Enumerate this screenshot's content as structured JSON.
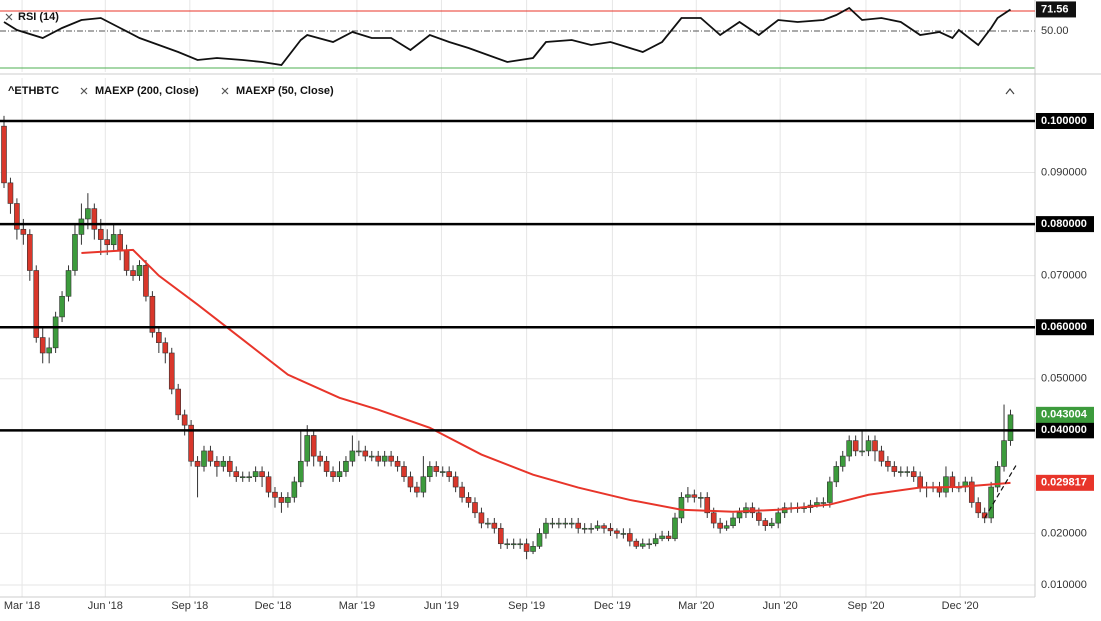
{
  "chart_data": {
    "type": "candlestick",
    "title": "^ETHBTC",
    "legend": [
      "MAEXP (200, Close)",
      "MAEXP (50, Close)"
    ],
    "up_color": "#3c9b3c",
    "down_color": "#d9372b",
    "xlim": [
      -0.62,
      159.8
    ],
    "ylim": [
      0.00767,
      0.10834
    ],
    "grid": true,
    "xticks": [
      {
        "value": 2.8,
        "label": "Mar '18"
      },
      {
        "value": 15.7,
        "label": "Jun '18"
      },
      {
        "value": 28.8,
        "label": "Sep '18"
      },
      {
        "value": 41.7,
        "label": "Dec '18"
      },
      {
        "value": 54.7,
        "label": "Mar '19"
      },
      {
        "value": 67.8,
        "label": "Jun '19"
      },
      {
        "value": 81,
        "label": "Sep '19"
      },
      {
        "value": 94.3,
        "label": "Dec '19"
      },
      {
        "value": 107.3,
        "label": "Mar '20"
      },
      {
        "value": 120.3,
        "label": "Jun '20"
      },
      {
        "value": 133.6,
        "label": "Sep '20"
      },
      {
        "value": 148.2,
        "label": "Dec '20"
      }
    ],
    "yticks": [
      {
        "value": 0.01,
        "label": "0.010000"
      },
      {
        "value": 0.02,
        "label": "0.020000"
      },
      {
        "value": 0.05,
        "label": "0.050000"
      },
      {
        "value": 0.07,
        "label": "0.070000"
      },
      {
        "value": 0.09,
        "label": "0.090000"
      }
    ],
    "levels": [
      {
        "value": 0.1,
        "label": "0.100000"
      },
      {
        "value": 0.08,
        "label": "0.080000"
      },
      {
        "value": 0.06,
        "label": "0.060000"
      },
      {
        "value": 0.04,
        "label": "0.040000"
      }
    ],
    "open": [
      0.099,
      0.088,
      0.084,
      0.079,
      0.078,
      0.071,
      0.058,
      0.055,
      0.056,
      0.062,
      0.066,
      0.071,
      0.078,
      0.081,
      0.083,
      0.079,
      0.077,
      0.076,
      0.078,
      0.075,
      0.071,
      0.07,
      0.072,
      0.066,
      0.059,
      0.057,
      0.055,
      0.048,
      0.043,
      0.041,
      0.034,
      0.033,
      0.036,
      0.034,
      0.033,
      0.034,
      0.032,
      0.031,
      0.031,
      0.031,
      0.032,
      0.031,
      0.028,
      0.027,
      0.026,
      0.027,
      0.03,
      0.034,
      0.039,
      0.035,
      0.034,
      0.032,
      0.031,
      0.032,
      0.034,
      0.036,
      0.036,
      0.035,
      0.035,
      0.034,
      0.035,
      0.034,
      0.033,
      0.031,
      0.029,
      0.028,
      0.031,
      0.033,
      0.032,
      0.032,
      0.031,
      0.029,
      0.027,
      0.026,
      0.024,
      0.022,
      0.022,
      0.021,
      0.018,
      0.018,
      0.018,
      0.018,
      0.0165,
      0.0175,
      0.02,
      0.022,
      0.022,
      0.022,
      0.022,
      0.022,
      0.021,
      0.021,
      0.021,
      0.0215,
      0.021,
      0.0205,
      0.02,
      0.02,
      0.0185,
      0.0175,
      0.018,
      0.018,
      0.019,
      0.0195,
      0.019,
      0.023,
      0.027,
      0.0275,
      0.027,
      0.027,
      0.024,
      0.022,
      0.021,
      0.0215,
      0.023,
      0.024,
      0.025,
      0.024,
      0.0225,
      0.0215,
      0.022,
      0.024,
      0.025,
      0.025,
      0.025,
      0.025,
      0.0255,
      0.026,
      0.026,
      0.03,
      0.033,
      0.035,
      0.038,
      0.036,
      0.036,
      0.038,
      0.036,
      0.034,
      0.033,
      0.032,
      0.032,
      0.032,
      0.031,
      0.029,
      0.029,
      0.029,
      0.028,
      0.031,
      0.029,
      0.029,
      0.03,
      0.026,
      0.024,
      0.023,
      0.029,
      0.033,
      0.038
    ],
    "high": [
      0.101,
      0.089,
      0.085,
      0.081,
      0.079,
      0.072,
      0.06,
      0.058,
      0.063,
      0.067,
      0.072,
      0.08,
      0.084,
      0.086,
      0.084,
      0.081,
      0.079,
      0.08,
      0.079,
      0.076,
      0.072,
      0.073,
      0.073,
      0.067,
      0.06,
      0.058,
      0.056,
      0.049,
      0.044,
      0.042,
      0.035,
      0.037,
      0.037,
      0.035,
      0.035,
      0.035,
      0.033,
      0.032,
      0.032,
      0.033,
      0.033,
      0.032,
      0.029,
      0.028,
      0.028,
      0.031,
      0.04,
      0.041,
      0.04,
      0.036,
      0.035,
      0.033,
      0.034,
      0.035,
      0.039,
      0.038,
      0.037,
      0.036,
      0.036,
      0.036,
      0.036,
      0.035,
      0.034,
      0.032,
      0.03,
      0.035,
      0.034,
      0.034,
      0.033,
      0.033,
      0.032,
      0.03,
      0.028,
      0.027,
      0.025,
      0.023,
      0.023,
      0.022,
      0.019,
      0.019,
      0.019,
      0.019,
      0.0185,
      0.021,
      0.023,
      0.023,
      0.023,
      0.023,
      0.023,
      0.023,
      0.022,
      0.022,
      0.0225,
      0.022,
      0.022,
      0.021,
      0.021,
      0.021,
      0.019,
      0.019,
      0.019,
      0.02,
      0.0205,
      0.0205,
      0.024,
      0.028,
      0.029,
      0.0285,
      0.028,
      0.028,
      0.025,
      0.023,
      0.0225,
      0.024,
      0.025,
      0.026,
      0.026,
      0.025,
      0.023,
      0.023,
      0.025,
      0.026,
      0.026,
      0.026,
      0.026,
      0.0265,
      0.027,
      0.027,
      0.031,
      0.034,
      0.036,
      0.039,
      0.039,
      0.04,
      0.039,
      0.039,
      0.037,
      0.035,
      0.034,
      0.033,
      0.033,
      0.033,
      0.032,
      0.03,
      0.03,
      0.03,
      0.033,
      0.032,
      0.03,
      0.031,
      0.031,
      0.027,
      0.025,
      0.03,
      0.034,
      0.045,
      0.044
    ],
    "low": [
      0.087,
      0.082,
      0.077,
      0.076,
      0.069,
      0.057,
      0.053,
      0.053,
      0.055,
      0.061,
      0.065,
      0.07,
      0.076,
      0.079,
      0.077,
      0.074,
      0.074,
      0.075,
      0.073,
      0.07,
      0.069,
      0.069,
      0.065,
      0.058,
      0.055,
      0.053,
      0.047,
      0.042,
      0.039,
      0.033,
      0.027,
      0.032,
      0.033,
      0.031,
      0.032,
      0.031,
      0.03,
      0.03,
      0.03,
      0.03,
      0.029,
      0.027,
      0.025,
      0.024,
      0.025,
      0.026,
      0.029,
      0.033,
      0.033,
      0.033,
      0.031,
      0.03,
      0.03,
      0.031,
      0.033,
      0.035,
      0.034,
      0.034,
      0.033,
      0.033,
      0.033,
      0.032,
      0.03,
      0.028,
      0.027,
      0.027,
      0.03,
      0.031,
      0.031,
      0.03,
      0.028,
      0.026,
      0.025,
      0.023,
      0.021,
      0.021,
      0.02,
      0.017,
      0.017,
      0.017,
      0.017,
      0.015,
      0.016,
      0.017,
      0.019,
      0.021,
      0.021,
      0.021,
      0.021,
      0.02,
      0.02,
      0.02,
      0.0205,
      0.02,
      0.0195,
      0.019,
      0.019,
      0.0175,
      0.017,
      0.017,
      0.017,
      0.0175,
      0.0185,
      0.0185,
      0.0185,
      0.022,
      0.026,
      0.026,
      0.025,
      0.023,
      0.021,
      0.02,
      0.0205,
      0.021,
      0.022,
      0.023,
      0.023,
      0.0215,
      0.0205,
      0.021,
      0.021,
      0.023,
      0.024,
      0.024,
      0.024,
      0.024,
      0.025,
      0.025,
      0.025,
      0.029,
      0.032,
      0.034,
      0.035,
      0.035,
      0.035,
      0.034,
      0.033,
      0.032,
      0.031,
      0.031,
      0.031,
      0.03,
      0.028,
      0.027,
      0.028,
      0.027,
      0.027,
      0.028,
      0.028,
      0.028,
      0.025,
      0.023,
      0.022,
      0.022,
      0.028,
      0.032,
      0.037
    ],
    "close": [
      0.088,
      0.084,
      0.079,
      0.078,
      0.071,
      0.058,
      0.055,
      0.056,
      0.062,
      0.066,
      0.071,
      0.078,
      0.081,
      0.083,
      0.079,
      0.077,
      0.076,
      0.078,
      0.075,
      0.071,
      0.07,
      0.072,
      0.066,
      0.059,
      0.057,
      0.055,
      0.048,
      0.043,
      0.041,
      0.034,
      0.033,
      0.036,
      0.034,
      0.033,
      0.034,
      0.032,
      0.031,
      0.031,
      0.031,
      0.032,
      0.031,
      0.028,
      0.027,
      0.026,
      0.027,
      0.03,
      0.034,
      0.039,
      0.035,
      0.034,
      0.032,
      0.031,
      0.032,
      0.034,
      0.036,
      0.036,
      0.035,
      0.035,
      0.034,
      0.035,
      0.034,
      0.033,
      0.031,
      0.029,
      0.028,
      0.031,
      0.033,
      0.032,
      0.032,
      0.031,
      0.029,
      0.027,
      0.026,
      0.024,
      0.022,
      0.022,
      0.021,
      0.018,
      0.018,
      0.018,
      0.018,
      0.0165,
      0.0175,
      0.02,
      0.022,
      0.022,
      0.022,
      0.022,
      0.022,
      0.021,
      0.021,
      0.021,
      0.0215,
      0.021,
      0.0205,
      0.02,
      0.02,
      0.0185,
      0.0175,
      0.018,
      0.018,
      0.019,
      0.0195,
      0.019,
      0.023,
      0.027,
      0.0275,
      0.027,
      0.027,
      0.024,
      0.022,
      0.021,
      0.0215,
      0.023,
      0.024,
      0.025,
      0.024,
      0.0225,
      0.0215,
      0.022,
      0.024,
      0.025,
      0.025,
      0.025,
      0.025,
      0.0255,
      0.026,
      0.026,
      0.03,
      0.033,
      0.035,
      0.038,
      0.036,
      0.036,
      0.038,
      0.036,
      0.034,
      0.033,
      0.032,
      0.032,
      0.032,
      0.031,
      0.029,
      0.029,
      0.029,
      0.028,
      0.031,
      0.029,
      0.029,
      0.03,
      0.026,
      0.024,
      0.023,
      0.029,
      0.033,
      0.038,
      0.043004
    ],
    "ma": {
      "color": "#e8352a",
      "x": [
        12,
        20,
        24,
        30,
        37,
        44,
        52,
        58,
        66,
        74,
        82,
        89,
        97,
        105,
        113,
        120,
        128,
        134,
        142,
        148,
        156
      ],
      "values": [
        0.0744,
        0.075,
        0.07,
        0.0644,
        0.0576,
        0.0508,
        0.0463,
        0.044,
        0.0405,
        0.0353,
        0.0314,
        0.0289,
        0.0265,
        0.0246,
        0.0242,
        0.0246,
        0.0256,
        0.0275,
        0.0289,
        0.029,
        0.029817
      ]
    },
    "trendline": {
      "x": [
        152,
        157
      ],
      "values": [
        0.023,
        0.0335
      ]
    },
    "rsi": {
      "title": "RSI (14)",
      "color": "#111",
      "ylim": [
        9,
        81
      ],
      "yticks": [
        {
          "value": 50,
          "label": "50.00"
        }
      ],
      "upper": {
        "value": 70,
        "color": "#e8352a"
      },
      "x": [
        0,
        2,
        6,
        9,
        12,
        15,
        18,
        21,
        24,
        27,
        30,
        33,
        37,
        40,
        43,
        46,
        47,
        51,
        54,
        57,
        60,
        63,
        66,
        69,
        72,
        75,
        78,
        82,
        84,
        88,
        91,
        94,
        97,
        99,
        102,
        105,
        108,
        111,
        114,
        117,
        120,
        123,
        127,
        129,
        131,
        133,
        136,
        139,
        142,
        145,
        147,
        148,
        151,
        153,
        154,
        156
      ],
      "values": [
        59,
        51,
        43,
        53,
        61,
        63,
        53,
        43,
        36,
        29,
        21,
        23,
        21,
        19,
        16,
        41,
        46,
        39,
        49,
        43,
        43,
        31,
        46,
        39,
        33,
        26,
        19,
        23,
        39,
        41,
        36,
        39,
        33,
        29,
        39,
        63,
        63,
        46,
        59,
        46,
        61,
        59,
        61,
        66,
        73,
        61,
        63,
        59,
        46,
        49,
        43,
        51,
        36,
        53,
        63,
        71.56
      ]
    }
  }
}
